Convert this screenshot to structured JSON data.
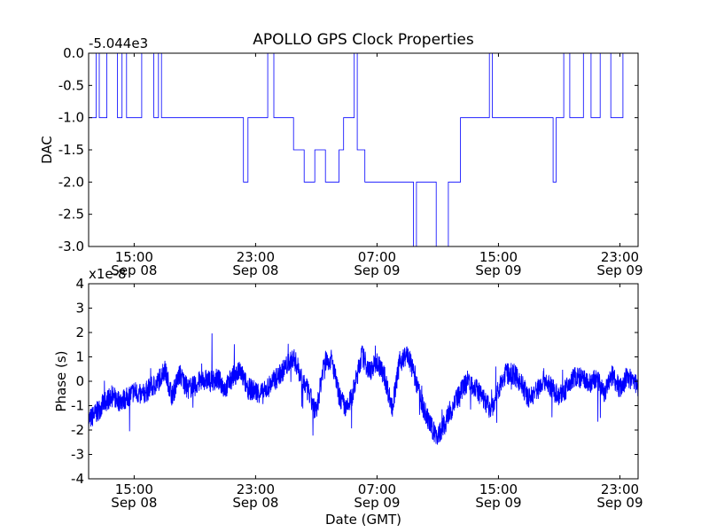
{
  "title": "APOLLO GPS Clock Properties",
  "colors": {
    "line": "#0000ff",
    "axes": "#000000",
    "background": "#ffffff"
  },
  "chart_data": [
    {
      "type": "line",
      "ylabel": "DAC",
      "offset_label": "-5.044e3",
      "ylim": [
        -3.0,
        0.0
      ],
      "yticks": [
        "0.0",
        "-0.5",
        "-1.0",
        "-1.5",
        "-2.0",
        "-2.5",
        "-3.0"
      ],
      "ytick_values": [
        0.0,
        -0.5,
        -1.0,
        -1.5,
        -2.0,
        -2.5,
        -3.0
      ],
      "xlim": [
        "Sep 08 12:00",
        "Sep 10 00:30"
      ],
      "xticks": [
        {
          "time": "15:00",
          "date": "Sep 08",
          "hour": 15
        },
        {
          "time": "23:00",
          "date": "Sep 08",
          "hour": 23
        },
        {
          "time": "07:00",
          "date": "Sep 09",
          "hour": 31
        },
        {
          "time": "15:00",
          "date": "Sep 09",
          "hour": 39
        },
        {
          "time": "23:00",
          "date": "Sep 09",
          "hour": 47
        }
      ],
      "xlim_hours": [
        12.0,
        48.2
      ],
      "series": [
        {
          "hours": [
            12.0,
            12.5,
            12.5,
            12.7,
            12.7,
            13.2,
            13.2,
            13.9,
            13.9,
            14.2,
            14.2,
            14.5,
            14.5,
            15.5,
            15.5,
            16.3,
            16.3,
            16.6,
            16.6,
            16.8,
            16.8,
            22.2,
            22.2,
            22.5,
            22.5,
            23.8,
            23.8,
            24.2,
            24.2,
            24.6,
            24.6,
            25.5,
            25.5,
            26.2,
            26.2,
            26.9,
            26.9,
            27.6,
            27.6,
            28.5,
            28.5,
            28.8,
            28.8,
            29.5,
            29.5,
            29.7,
            29.7,
            30.2,
            30.2,
            30.6,
            30.6,
            33.4,
            33.4,
            33.6,
            33.6,
            34.9,
            34.9,
            35.7,
            35.7,
            36.5,
            36.5,
            38.4,
            38.4,
            38.6,
            38.6,
            42.6,
            42.6,
            42.8,
            42.8,
            43.3,
            43.3,
            43.7,
            43.7,
            44.6,
            44.6,
            45.1,
            45.1,
            45.7,
            45.7,
            46.4,
            46.4,
            47.2,
            47.2,
            48.2
          ],
          "values": [
            -1.0,
            -1.0,
            0.0,
            0.0,
            -1.0,
            -1.0,
            0.0,
            0.0,
            -1.0,
            -1.0,
            0.0,
            0.0,
            -1.0,
            -1.0,
            0.0,
            0.0,
            -1.0,
            -1.0,
            0.0,
            0.0,
            -1.0,
            -1.0,
            -2.0,
            -2.0,
            -1.0,
            -1.0,
            0.0,
            0.0,
            -1.0,
            -1.0,
            -1.0,
            -1.0,
            -1.5,
            -1.5,
            -2.0,
            -2.0,
            -1.5,
            -1.5,
            -2.0,
            -2.0,
            -1.5,
            -1.5,
            -1.0,
            -1.0,
            0.0,
            0.0,
            -1.5,
            -1.5,
            -2.0,
            -2.0,
            -2.0,
            -2.0,
            -3.0,
            -3.0,
            -2.0,
            -2.0,
            -3.0,
            -3.0,
            -2.0,
            -2.0,
            -1.0,
            -1.0,
            0.0,
            0.0,
            -1.0,
            -1.0,
            -2.0,
            -2.0,
            -1.0,
            -1.0,
            0.0,
            0.0,
            -1.0,
            -1.0,
            0.0,
            0.0,
            -1.0,
            -1.0,
            0.0,
            0.0,
            -1.0,
            -1.0,
            0.0,
            0.0
          ]
        }
      ]
    },
    {
      "type": "line",
      "ylabel": "Phase (s)",
      "xlabel": "Date (GMT)",
      "offset_label": "x1e-8",
      "ylim": [
        -4,
        4
      ],
      "yticks": [
        "4",
        "3",
        "2",
        "1",
        "0",
        "-1",
        "-2",
        "-3",
        "-4"
      ],
      "ytick_values": [
        4,
        3,
        2,
        1,
        0,
        -1,
        -2,
        -3,
        -4
      ],
      "xlim": [
        "Sep 08 12:00",
        "Sep 10 00:30"
      ],
      "xticks": [
        {
          "time": "15:00",
          "date": "Sep 08",
          "hour": 15
        },
        {
          "time": "23:00",
          "date": "Sep 08",
          "hour": 23
        },
        {
          "time": "07:00",
          "date": "Sep 09",
          "hour": 31
        },
        {
          "time": "15:00",
          "date": "Sep 09",
          "hour": 39
        },
        {
          "time": "23:00",
          "date": "Sep 09",
          "hour": 47
        }
      ],
      "xlim_hours": [
        12.0,
        48.2
      ],
      "series": [
        {
          "hours": [
            12.0,
            12.5,
            13.0,
            13.5,
            14.0,
            14.5,
            15.0,
            15.5,
            16.0,
            16.5,
            17.0,
            17.5,
            18.0,
            18.5,
            19.0,
            19.5,
            20.0,
            20.5,
            21.0,
            21.5,
            22.0,
            22.5,
            23.0,
            23.5,
            24.0,
            24.5,
            25.0,
            25.5,
            26.0,
            26.5,
            27.0,
            27.5,
            28.0,
            28.5,
            29.0,
            29.5,
            30.0,
            30.5,
            31.0,
            31.5,
            32.0,
            32.5,
            33.0,
            33.5,
            34.0,
            34.5,
            35.0,
            35.5,
            36.0,
            36.5,
            37.0,
            37.5,
            38.0,
            38.5,
            39.0,
            39.5,
            40.0,
            40.5,
            41.0,
            41.5,
            42.0,
            42.5,
            43.0,
            43.5,
            44.0,
            44.5,
            45.0,
            45.5,
            46.0,
            46.5,
            47.0,
            47.5,
            48.2
          ],
          "values": [
            -1.6,
            -1.3,
            -0.9,
            -0.6,
            -0.8,
            -0.7,
            -0.4,
            -0.6,
            -0.3,
            -0.1,
            0.5,
            -0.6,
            0.3,
            -0.3,
            -0.2,
            0.1,
            0.0,
            0.1,
            -0.3,
            0.2,
            0.4,
            -0.3,
            -0.4,
            -0.5,
            -0.1,
            0.2,
            0.6,
            1.0,
            0.2,
            -0.5,
            -1.3,
            0.8,
            0.9,
            -0.6,
            -1.2,
            -0.3,
            1.1,
            0.4,
            0.8,
            0.2,
            -1.1,
            0.8,
            1.1,
            0.2,
            -1.0,
            -1.8,
            -2.3,
            -1.7,
            -1.0,
            -0.5,
            0.1,
            -0.3,
            -0.7,
            -1.2,
            -0.3,
            0.3,
            0.3,
            -0.1,
            -0.7,
            -0.4,
            0.1,
            -0.3,
            -0.6,
            -0.3,
            0.2,
            0.1,
            -0.1,
            0.1,
            -0.5,
            0.3,
            -0.3,
            0.2,
            -0.2
          ]
        }
      ]
    }
  ]
}
